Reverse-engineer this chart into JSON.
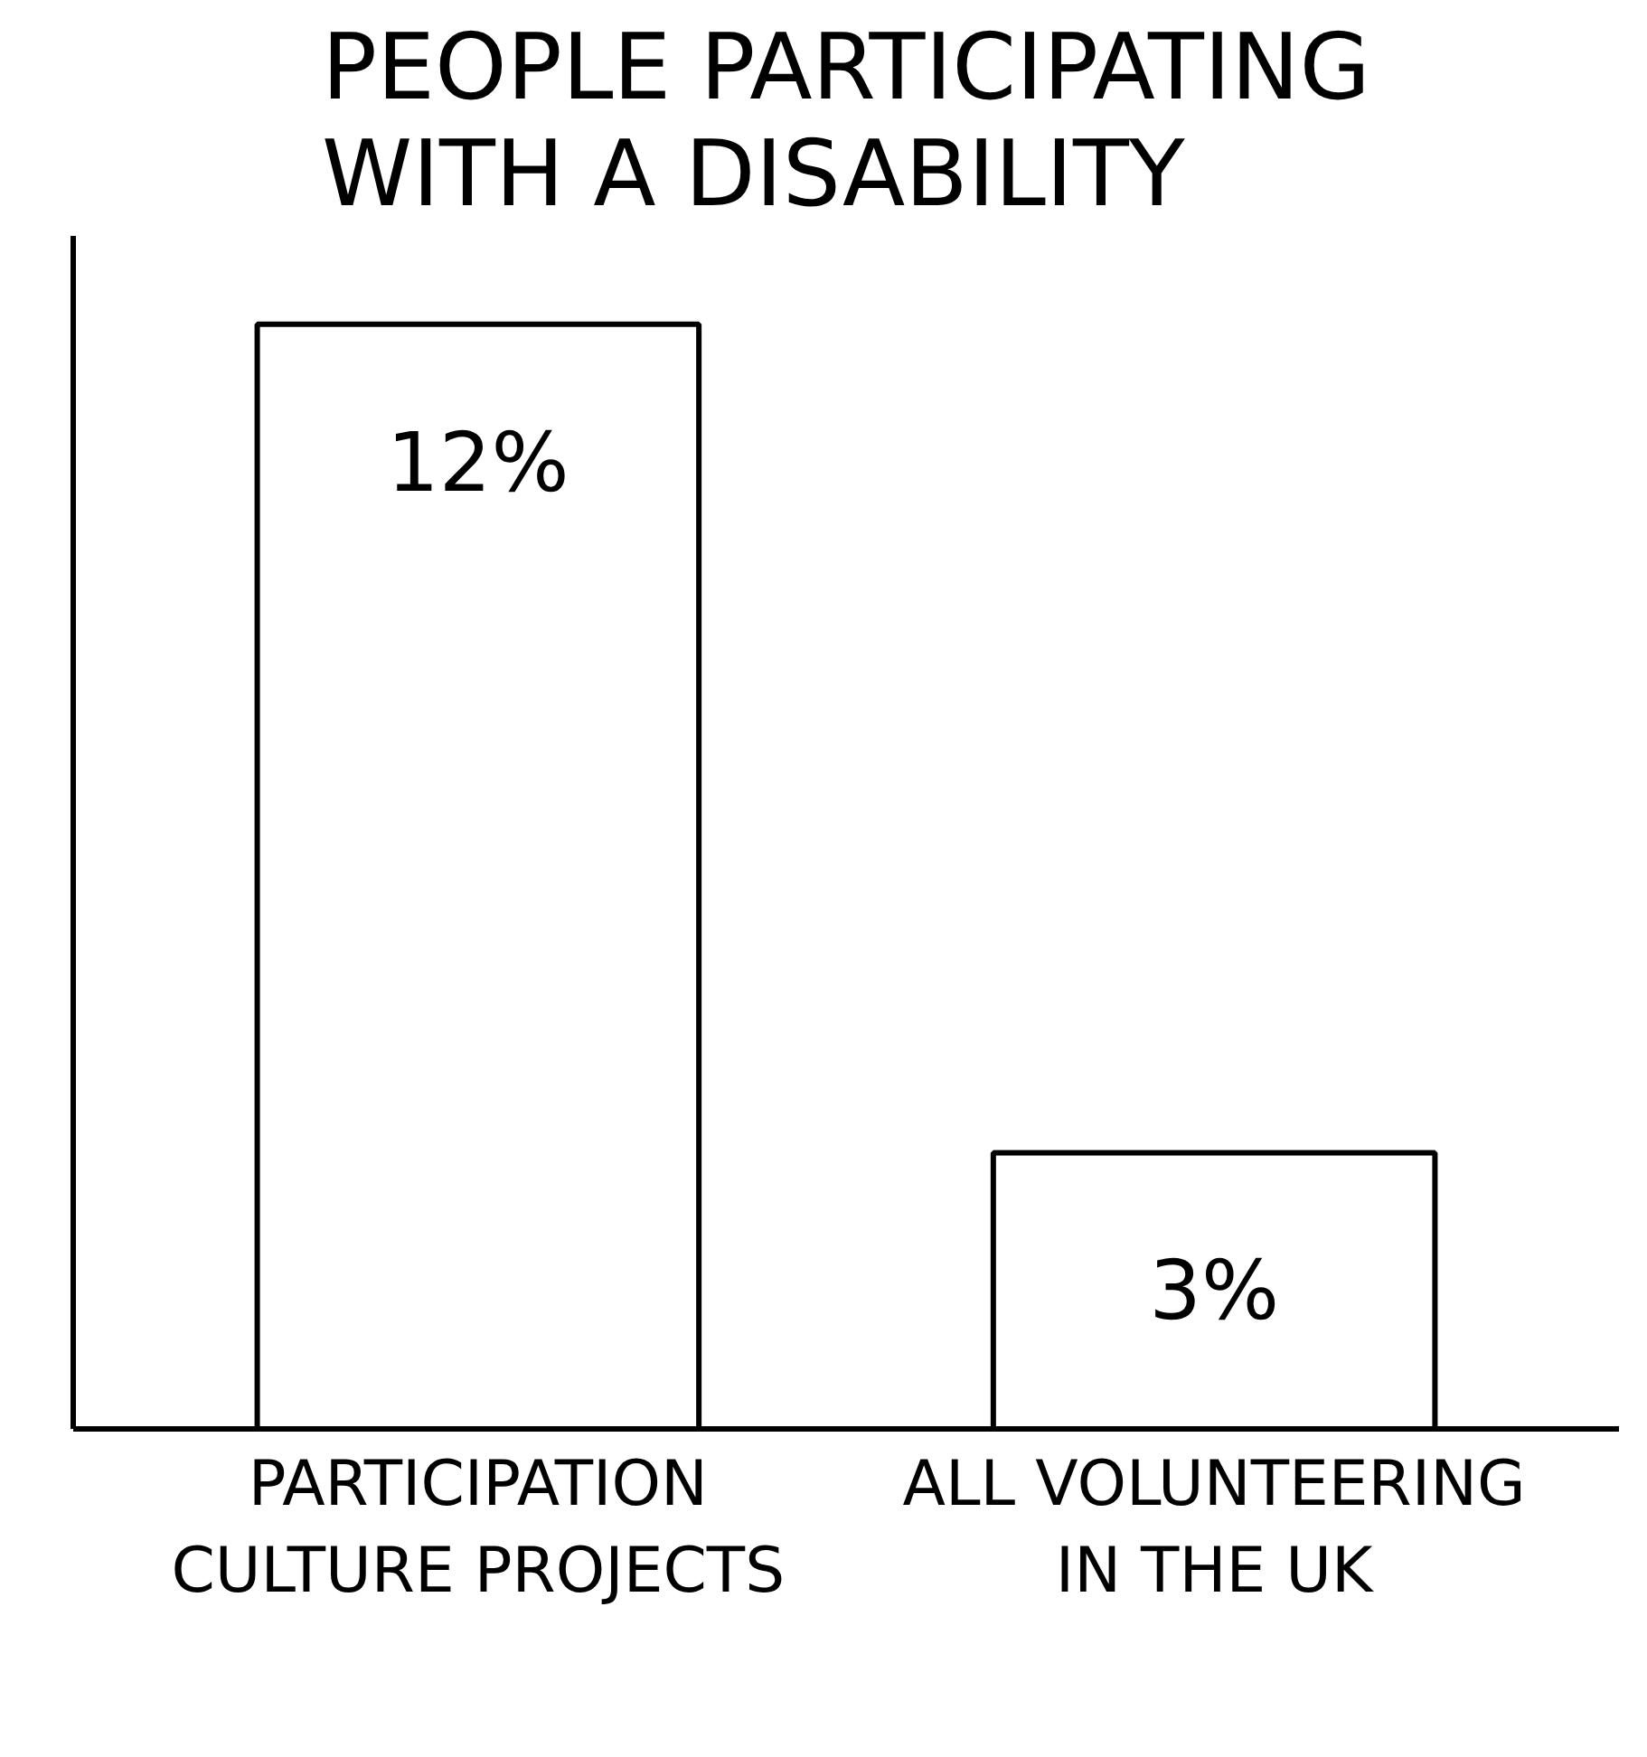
{
  "chart_data": {
    "type": "bar",
    "title": "PEOPLE PARTICIPATING WITH A DISABILITY",
    "categories": [
      "PARTICIPATION CULTURE PROJECTS",
      "ALL VOLUNTEERING IN THE UK"
    ],
    "values": [
      12,
      3
    ],
    "value_labels": [
      "12%",
      "3%"
    ],
    "color": "#ffffff",
    "tick_labels": "x",
    "grid": false
  }
}
